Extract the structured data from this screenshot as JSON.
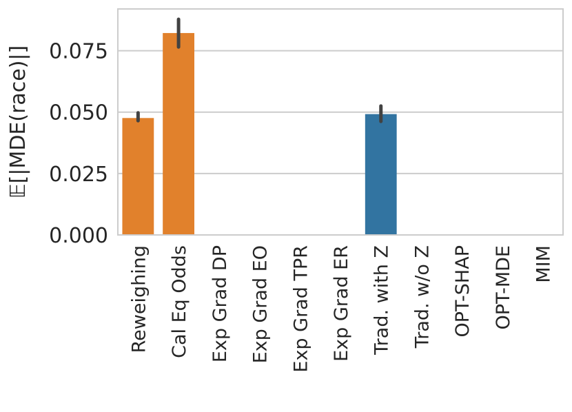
{
  "chart_data": {
    "type": "bar",
    "title": "",
    "xlabel": "",
    "ylabel": "𝔼[|MDE(race)|]",
    "ylim": [
      0,
      0.092
    ],
    "yticks": [
      0.0,
      0.025,
      0.05,
      0.075
    ],
    "ytick_labels": [
      "0.000",
      "0.025",
      "0.050",
      "0.075"
    ],
    "grid": "horizontal",
    "categories": [
      "Reweighing",
      "Cal Eq Odds",
      "Exp Grad DP",
      "Exp Grad EO",
      "Exp Grad TPR",
      "Exp Grad ER",
      "Trad. with Z",
      "Trad. w/o Z",
      "OPT-SHAP",
      "OPT-MDE",
      "MIM"
    ],
    "values": [
      0.0476,
      0.0822,
      0.0,
      0.0,
      0.0,
      0.0,
      0.0492,
      0.0,
      0.0,
      0.0,
      0.0
    ],
    "error_low": [
      0.0465,
      0.0765,
      0.0,
      0.0,
      0.0,
      0.0,
      0.0462,
      0.0,
      0.0,
      0.0,
      0.0
    ],
    "error_high": [
      0.0497,
      0.0878,
      0.0,
      0.0,
      0.0,
      0.0,
      0.0525,
      0.0,
      0.0,
      0.0,
      0.0
    ],
    "bar_colors": [
      "#e1812c",
      "#e1812c",
      "#e1812c",
      "#e1812c",
      "#e1812c",
      "#e1812c",
      "#3274a1",
      "#3274a1",
      "#3274a1",
      "#3274a1",
      "#3274a1"
    ],
    "colors": {
      "grid": "#cccccc",
      "axis": "#cccccc",
      "errorbar": "#424242"
    }
  }
}
